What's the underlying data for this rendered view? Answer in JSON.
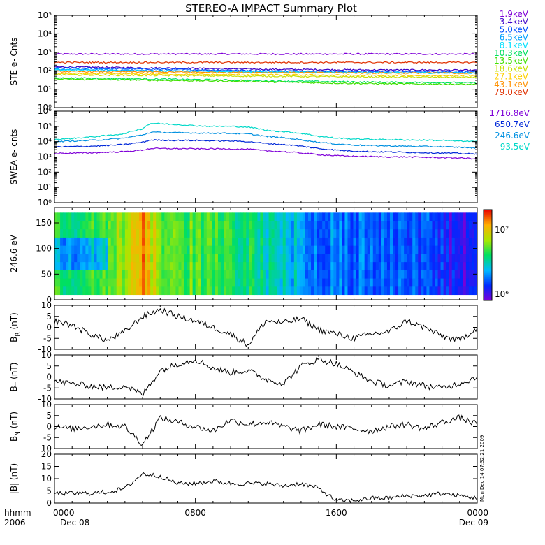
{
  "title": "STEREO-A IMPACT Summary Plot",
  "footer": {
    "left_top": "hhmm",
    "left_bottom": "2006",
    "x_ticks": [
      "0000",
      "0800",
      "1600",
      "0000"
    ],
    "x_dates": [
      "Dec 08",
      "Dec 09"
    ],
    "stamp": "Mon Dec 14 07:32:21 2009"
  },
  "colors": {
    "frame": "#000000",
    "trace": "#000000"
  },
  "chart_data": [
    {
      "type": "line",
      "id": "ste",
      "ylabel": "STE e- Cnts",
      "yscale": "log",
      "ylim": [
        1,
        100000
      ],
      "ytick_labels": [
        "10⁰",
        "10¹",
        "10²",
        "10³",
        "10⁴",
        "10⁵"
      ],
      "x_range_hours": [
        0,
        24
      ],
      "x": [
        0,
        3,
        6,
        9,
        12,
        15,
        18,
        21,
        24
      ],
      "series": [
        {
          "name": "1.9keV",
          "color": "#7f00d8",
          "values": [
            800,
            800,
            800,
            800,
            800,
            800,
            800,
            800,
            800
          ]
        },
        {
          "name": "3.4keV",
          "color": "#3c00c8",
          "values": [
            160,
            150,
            140,
            130,
            120,
            115,
            110,
            110,
            105
          ]
        },
        {
          "name": "5.0keV",
          "color": "#0050ff",
          "values": [
            140,
            130,
            120,
            110,
            100,
            95,
            90,
            90,
            85
          ]
        },
        {
          "name": "6.5keV",
          "color": "#00a0ff",
          "values": [
            120,
            110,
            100,
            95,
            90,
            85,
            80,
            80,
            78
          ]
        },
        {
          "name": "8.1keV",
          "color": "#00e0ff",
          "values": [
            110,
            100,
            95,
            90,
            85,
            80,
            78,
            76,
            75
          ]
        },
        {
          "name": "10.3keV",
          "color": "#00e060",
          "values": [
            40,
            38,
            35,
            32,
            28,
            26,
            24,
            23,
            22
          ]
        },
        {
          "name": "13.5keV",
          "color": "#40e000",
          "values": [
            35,
            33,
            30,
            28,
            25,
            22,
            20,
            19,
            18
          ]
        },
        {
          "name": "18.6keV",
          "color": "#c8e000",
          "values": [
            60,
            58,
            55,
            52,
            50,
            48,
            46,
            45,
            44
          ]
        },
        {
          "name": "27.1keV",
          "color": "#ffd000",
          "values": [
            70,
            68,
            65,
            62,
            60,
            58,
            56,
            55,
            54
          ]
        },
        {
          "name": "43.1keV",
          "color": "#ff9000",
          "values": [
            90,
            88,
            85,
            82,
            80,
            78,
            76,
            75,
            74
          ]
        },
        {
          "name": "79.0keV",
          "color": "#e03000",
          "values": [
            280,
            280,
            280,
            280,
            280,
            280,
            280,
            280,
            280
          ]
        }
      ]
    },
    {
      "type": "line",
      "id": "swea",
      "ylabel": "SWEA e- cnts",
      "yscale": "log",
      "ylim": [
        1,
        1000000
      ],
      "ytick_labels": [
        "10⁰",
        "10¹",
        "10²",
        "10³",
        "10⁴",
        "10⁵",
        "10⁶"
      ],
      "x_range_hours": [
        0,
        24
      ],
      "x": [
        0,
        1,
        2,
        3,
        4,
        5,
        5.5,
        6,
        7,
        8,
        9,
        10,
        11,
        12,
        13,
        14,
        15,
        16,
        17,
        18,
        19,
        20,
        21,
        22,
        23,
        24
      ],
      "series": [
        {
          "name": "1716.8eV",
          "color": "#7f00d8",
          "values": [
            1700,
            1750,
            1850,
            2000,
            2200,
            2800,
            3600,
            3500,
            3500,
            3400,
            3400,
            3300,
            3200,
            2500,
            2200,
            1800,
            1400,
            1200,
            1100,
            1050,
            1000,
            1000,
            950,
            900,
            850,
            750
          ]
        },
        {
          "name": "650.7eV",
          "color": "#0028d8",
          "values": [
            4500,
            4700,
            5000,
            5500,
            6500,
            9000,
            13000,
            12500,
            12000,
            12000,
            11500,
            11000,
            10000,
            7500,
            6500,
            5000,
            3500,
            2800,
            2400,
            2200,
            2100,
            2000,
            1900,
            1800,
            1700,
            1500
          ]
        },
        {
          "name": "246.6eV",
          "color": "#0090e0",
          "values": [
            10000,
            11000,
            12000,
            14000,
            17000,
            27000,
            42000,
            40000,
            38000,
            37000,
            36000,
            35000,
            32000,
            22000,
            18000,
            13000,
            9000,
            7000,
            6000,
            5500,
            5200,
            5000,
            4800,
            4600,
            4300,
            3800
          ]
        },
        {
          "name": "93.5eV",
          "color": "#00d8c8",
          "values": [
            14000,
            16000,
            20000,
            25000,
            33000,
            70000,
            160000,
            150000,
            130000,
            110000,
            100000,
            100000,
            90000,
            55000,
            45000,
            35000,
            22000,
            17000,
            15000,
            14000,
            13500,
            13000,
            12500,
            12000,
            11000,
            10000
          ]
        }
      ]
    },
    {
      "type": "heatmap",
      "id": "pad",
      "ylabel": "246.6 eV",
      "yscale": "linear",
      "ylim": [
        0,
        180
      ],
      "yticks": [
        0,
        50,
        100,
        150
      ],
      "x_range_hours": [
        0,
        24
      ],
      "pitch_angle_range": [
        10,
        170
      ],
      "colorscale": "rainbow",
      "colorbar_labels": [
        "10⁶",
        "10⁷"
      ],
      "colorbar_range": [
        700000,
        20000000
      ],
      "intensity_by_hour": [
        {
          "h": 0,
          "v": 0.55
        },
        {
          "h": 1,
          "v": 0.5
        },
        {
          "h": 2,
          "v": 0.55
        },
        {
          "h": 3,
          "v": 0.6
        },
        {
          "h": 4,
          "v": 0.65
        },
        {
          "h": 5,
          "v": 0.85
        },
        {
          "h": 6,
          "v": 0.62
        },
        {
          "h": 7,
          "v": 0.58
        },
        {
          "h": 8,
          "v": 0.57
        },
        {
          "h": 9,
          "v": 0.55
        },
        {
          "h": 10,
          "v": 0.5
        },
        {
          "h": 11,
          "v": 0.48
        },
        {
          "h": 12,
          "v": 0.42
        },
        {
          "h": 13,
          "v": 0.38
        },
        {
          "h": 14,
          "v": 0.33
        },
        {
          "h": 15,
          "v": 0.28
        },
        {
          "h": 16,
          "v": 0.25
        },
        {
          "h": 17,
          "v": 0.22
        },
        {
          "h": 18,
          "v": 0.24
        },
        {
          "h": 19,
          "v": 0.2
        },
        {
          "h": 20,
          "v": 0.25
        },
        {
          "h": 21,
          "v": 0.2
        },
        {
          "h": 22,
          "v": 0.14
        },
        {
          "h": 23,
          "v": 0.1
        },
        {
          "h": 24,
          "v": 0.08
        }
      ]
    },
    {
      "type": "line",
      "id": "br",
      "ylabel": "BR (nT)",
      "ylabel_main": "B",
      "ylabel_sub": "R",
      "ylabel_unit": "(nT)",
      "ylim": [
        -10,
        10
      ],
      "yticks": [
        -10,
        -5,
        0,
        5,
        10
      ],
      "x_range_hours": [
        0,
        24
      ],
      "x": [
        0,
        1,
        2,
        3,
        4,
        5,
        6,
        7,
        8,
        9,
        10,
        11,
        12,
        13,
        14,
        15,
        16,
        17,
        18,
        19,
        20,
        21,
        22,
        23,
        24
      ],
      "values": [
        3,
        1,
        -3,
        -6,
        -2,
        5,
        8,
        5,
        3,
        0,
        -3,
        -8,
        3,
        2,
        4,
        -1,
        -3,
        -5,
        -3,
        -2,
        3,
        0,
        -4,
        -6,
        0
      ]
    },
    {
      "type": "line",
      "id": "bt",
      "ylabel": "BT (nT)",
      "ylabel_main": "B",
      "ylabel_sub": "T",
      "ylabel_unit": "(nT)",
      "ylim": [
        -10,
        10
      ],
      "yticks": [
        -10,
        -5,
        0,
        5,
        10
      ],
      "x_range_hours": [
        0,
        24
      ],
      "x": [
        0,
        1,
        2,
        3,
        4,
        5,
        6,
        7,
        8,
        9,
        10,
        11,
        12,
        13,
        14,
        15,
        16,
        17,
        18,
        19,
        20,
        21,
        22,
        23,
        24
      ],
      "values": [
        -2,
        -3,
        -4,
        -5,
        -4,
        -8,
        3,
        6,
        8,
        4,
        2,
        3,
        -1,
        -3,
        5,
        8,
        6,
        2,
        -2,
        -4,
        -2,
        -4,
        -5,
        -3,
        0
      ]
    },
    {
      "type": "line",
      "id": "bn",
      "ylabel": "BN (nT)",
      "ylabel_main": "B",
      "ylabel_sub": "N",
      "ylabel_unit": "(nT)",
      "ylim": [
        -10,
        10
      ],
      "yticks": [
        -10,
        -5,
        0,
        5,
        10
      ],
      "x_range_hours": [
        0,
        24
      ],
      "x": [
        0,
        1,
        2,
        3,
        4,
        5,
        6,
        7,
        8,
        9,
        10,
        11,
        12,
        13,
        14,
        15,
        16,
        17,
        18,
        19,
        20,
        21,
        22,
        23,
        24
      ],
      "values": [
        0,
        -1,
        0,
        1,
        0,
        -8,
        4,
        2,
        0,
        -2,
        3,
        1,
        2,
        0,
        -2,
        1,
        0,
        -1,
        -2,
        0,
        1,
        -1,
        2,
        4,
        1
      ]
    },
    {
      "type": "line",
      "id": "bmag",
      "ylabel": "|B| (nT)",
      "ylim": [
        0,
        20
      ],
      "yticks": [
        0,
        5,
        10,
        15,
        20
      ],
      "x_range_hours": [
        0,
        24
      ],
      "x": [
        0,
        1,
        2,
        3,
        4,
        5,
        6,
        7,
        8,
        9,
        10,
        11,
        12,
        13,
        14,
        15,
        16,
        17,
        18,
        19,
        20,
        21,
        22,
        23,
        24
      ],
      "values": [
        4,
        4,
        4,
        4.5,
        6,
        12,
        11,
        8,
        8,
        9,
        8,
        8,
        8,
        7,
        8,
        6,
        1,
        1,
        2,
        2,
        3,
        3,
        4,
        3,
        2
      ]
    }
  ]
}
